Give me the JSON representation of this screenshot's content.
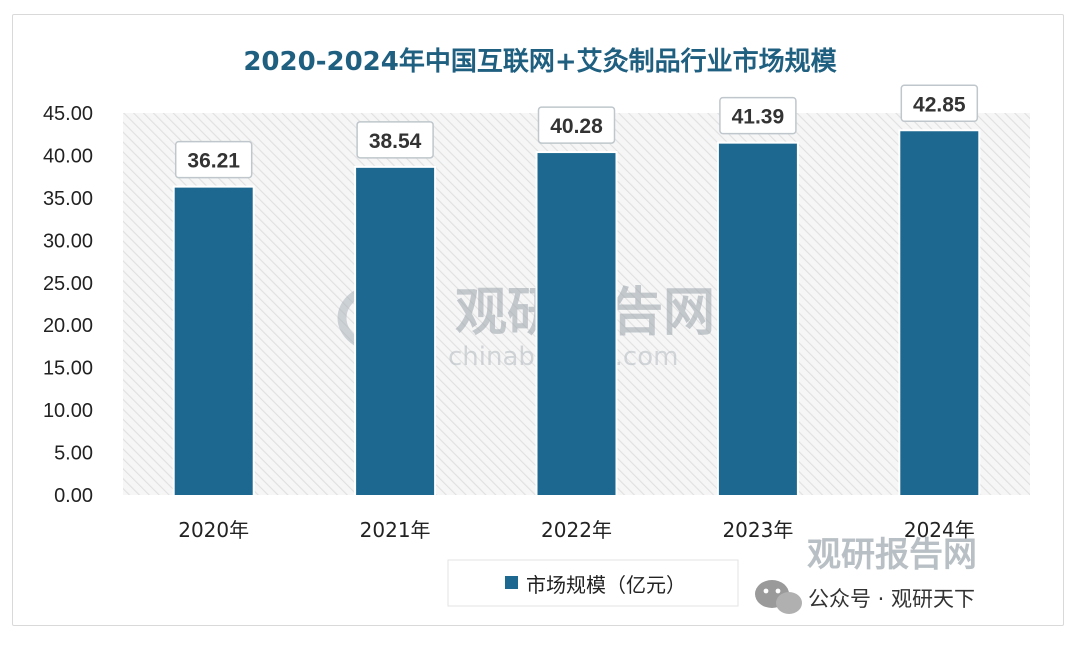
{
  "chart_data": {
    "type": "bar",
    "title": "2020-2024年中国互联网+艾灸制品行业市场规模",
    "categories": [
      "2020年",
      "2021年",
      "2022年",
      "2023年",
      "2024年"
    ],
    "series": [
      {
        "name": "市场规模（亿元）",
        "values": [
          36.21,
          38.54,
          40.28,
          41.39,
          42.85
        ]
      }
    ],
    "data_labels": [
      "36.21",
      "38.54",
      "40.28",
      "41.39",
      "42.85"
    ],
    "ylim": [
      0,
      45
    ],
    "yticks": [
      "0.00",
      "5.00",
      "10.00",
      "15.00",
      "20.00",
      "25.00",
      "30.00",
      "35.00",
      "40.00",
      "45.00"
    ],
    "grid": false,
    "legend_position": "bottom-center",
    "bar_color": "#1c6890",
    "plot_background": "hatched-light-gray"
  },
  "watermark": {
    "brand": "观研报告网",
    "url": "chinabaogao.com"
  },
  "footer": {
    "brand": "观研报告网",
    "account": "公众号 · 观研天下"
  },
  "colors": {
    "bar": "#1c6890",
    "title": "#1f5f80",
    "label_border": "#bfc7cc"
  }
}
